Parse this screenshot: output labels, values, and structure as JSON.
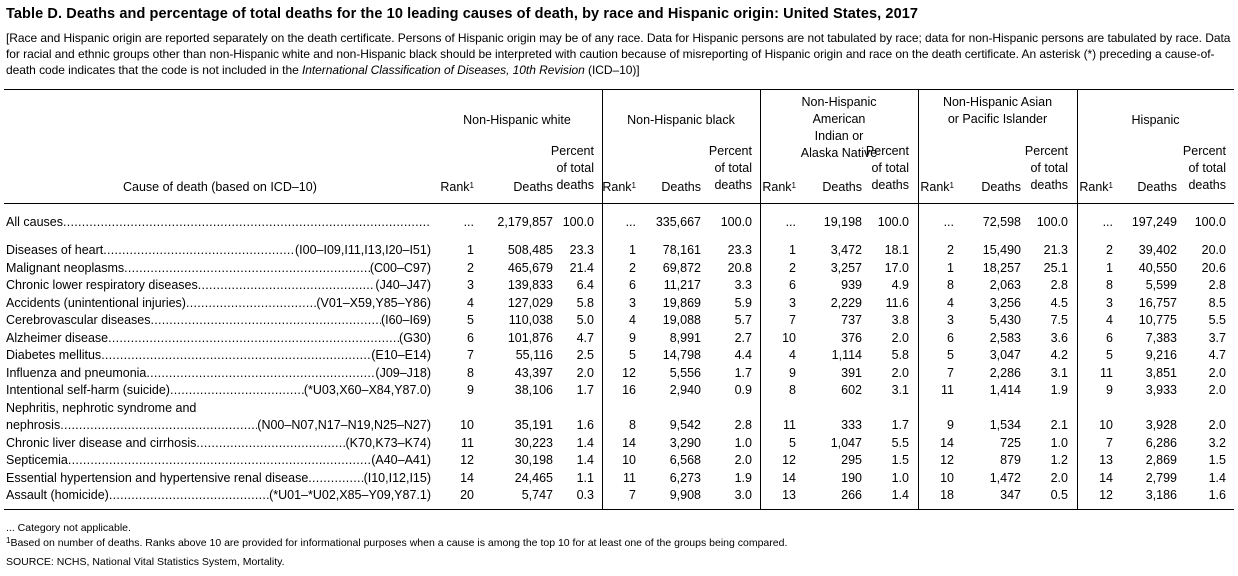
{
  "title": "Table D. Deaths and percentage of total deaths for the 10 leading causes of death, by race and Hispanic origin: United States, 2017",
  "note": {
    "text_a": "[Race and Hispanic origin are reported separately on the death certificate. Persons of Hispanic origin may be of any race. Data for Hispanic persons are not tabulated by race; data for non-Hispanic persons are tabulated by race. Data for racial and ethnic groups other than non-Hispanic white and non-Hispanic black should be interpreted with caution because of misreporting of Hispanic origin and race on the death certificate. An asterisk (*) preceding a cause-of-death code indicates that the code is not included in the ",
    "text_italic": "International Classification of Diseases, 10th Revision",
    "text_b": " (ICD–10)]"
  },
  "groups": [
    "Non-Hispanic white",
    "Non-Hispanic black",
    "Non-Hispanic American Indian or Alaska Native",
    "Non-Hispanic Asian or Pacific Islander",
    "Hispanic"
  ],
  "columns": {
    "cause": "Cause of death (based on ICD–10)",
    "rank": "Rank",
    "rank_sup": "1",
    "deaths": "Deaths",
    "percent_l1": "Percent",
    "percent_l2": "of total",
    "percent_l3": "deaths"
  },
  "all_causes": {
    "name": "All causes",
    "values": [
      [
        "...",
        "2,179,857",
        "100.0"
      ],
      [
        "...",
        "335,667",
        "100.0"
      ],
      [
        "...",
        "19,198",
        "100.0"
      ],
      [
        "...",
        "72,598",
        "100.0"
      ],
      [
        "...",
        "197,249",
        "100.0"
      ]
    ]
  },
  "rows": [
    {
      "name": "Diseases of heart",
      "code": "(I00–I09,I11,I13,I20–I51)",
      "values": [
        [
          "1",
          "508,485",
          "23.3"
        ],
        [
          "1",
          "78,161",
          "23.3"
        ],
        [
          "1",
          "3,472",
          "18.1"
        ],
        [
          "2",
          "15,490",
          "21.3"
        ],
        [
          "2",
          "39,402",
          "20.0"
        ]
      ]
    },
    {
      "name": "Malignant neoplasms",
      "code": "(C00–C97)",
      "values": [
        [
          "2",
          "465,679",
          "21.4"
        ],
        [
          "2",
          "69,872",
          "20.8"
        ],
        [
          "2",
          "3,257",
          "17.0"
        ],
        [
          "1",
          "18,257",
          "25.1"
        ],
        [
          "1",
          "40,550",
          "20.6"
        ]
      ]
    },
    {
      "name": "Chronic lower respiratory diseases",
      "code": "(J40–J47)",
      "values": [
        [
          "3",
          "139,833",
          "6.4"
        ],
        [
          "6",
          "11,217",
          "3.3"
        ],
        [
          "6",
          "939",
          "4.9"
        ],
        [
          "8",
          "2,063",
          "2.8"
        ],
        [
          "8",
          "5,599",
          "2.8"
        ]
      ]
    },
    {
      "name": "Accidents (unintentional injuries)",
      "code": "(V01–X59,Y85–Y86)",
      "values": [
        [
          "4",
          "127,029",
          "5.8"
        ],
        [
          "3",
          "19,869",
          "5.9"
        ],
        [
          "3",
          "2,229",
          "11.6"
        ],
        [
          "4",
          "3,256",
          "4.5"
        ],
        [
          "3",
          "16,757",
          "8.5"
        ]
      ]
    },
    {
      "name": "Cerebrovascular diseases",
      "code": "(I60–I69)",
      "values": [
        [
          "5",
          "110,038",
          "5.0"
        ],
        [
          "4",
          "19,088",
          "5.7"
        ],
        [
          "7",
          "737",
          "3.8"
        ],
        [
          "3",
          "5,430",
          "7.5"
        ],
        [
          "4",
          "10,775",
          "5.5"
        ]
      ]
    },
    {
      "name": "Alzheimer disease",
      "code": "(G30)",
      "values": [
        [
          "6",
          "101,876",
          "4.7"
        ],
        [
          "9",
          "8,991",
          "2.7"
        ],
        [
          "10",
          "376",
          "2.0"
        ],
        [
          "6",
          "2,583",
          "3.6"
        ],
        [
          "6",
          "7,383",
          "3.7"
        ]
      ]
    },
    {
      "name": "Diabetes mellitus",
      "code": "(E10–E14)",
      "values": [
        [
          "7",
          "55,116",
          "2.5"
        ],
        [
          "5",
          "14,798",
          "4.4"
        ],
        [
          "4",
          "1,114",
          "5.8"
        ],
        [
          "5",
          "3,047",
          "4.2"
        ],
        [
          "5",
          "9,216",
          "4.7"
        ]
      ]
    },
    {
      "name": "Influenza and pneumonia",
      "code": "(J09–J18)",
      "values": [
        [
          "8",
          "43,397",
          "2.0"
        ],
        [
          "12",
          "5,556",
          "1.7"
        ],
        [
          "9",
          "391",
          "2.0"
        ],
        [
          "7",
          "2,286",
          "3.1"
        ],
        [
          "11",
          "3,851",
          "2.0"
        ]
      ]
    },
    {
      "name": "Intentional self-harm (suicide)",
      "code": "(*U03,X60–X84,Y87.0)",
      "values": [
        [
          "9",
          "38,106",
          "1.7"
        ],
        [
          "16",
          "2,940",
          "0.9"
        ],
        [
          "8",
          "602",
          "3.1"
        ],
        [
          "11",
          "1,414",
          "1.9"
        ],
        [
          "9",
          "3,933",
          "2.0"
        ]
      ]
    },
    {
      "name": "nephrosis",
      "prefix": "Nephritis, nephrotic syndrome and",
      "code": "(N00–N07,N17–N19,N25–N27)",
      "values": [
        [
          "10",
          "35,191",
          "1.6"
        ],
        [
          "8",
          "9,542",
          "2.8"
        ],
        [
          "11",
          "333",
          "1.7"
        ],
        [
          "9",
          "1,534",
          "2.1"
        ],
        [
          "10",
          "3,928",
          "2.0"
        ]
      ]
    },
    {
      "name": "Chronic liver disease and cirrhosis",
      "code": "(K70,K73–K74)",
      "values": [
        [
          "11",
          "30,223",
          "1.4"
        ],
        [
          "14",
          "3,290",
          "1.0"
        ],
        [
          "5",
          "1,047",
          "5.5"
        ],
        [
          "14",
          "725",
          "1.0"
        ],
        [
          "7",
          "6,286",
          "3.2"
        ]
      ]
    },
    {
      "name": "Septicemia",
      "code": "(A40–A41)",
      "values": [
        [
          "12",
          "30,198",
          "1.4"
        ],
        [
          "10",
          "6,568",
          "2.0"
        ],
        [
          "12",
          "295",
          "1.5"
        ],
        [
          "12",
          "879",
          "1.2"
        ],
        [
          "13",
          "2,869",
          "1.5"
        ]
      ]
    },
    {
      "name": "Essential hypertension and hypertensive renal disease",
      "code": "(I10,I12,I15)",
      "values": [
        [
          "14",
          "24,465",
          "1.1"
        ],
        [
          "11",
          "6,273",
          "1.9"
        ],
        [
          "14",
          "190",
          "1.0"
        ],
        [
          "10",
          "1,472",
          "2.0"
        ],
        [
          "14",
          "2,799",
          "1.4"
        ]
      ]
    },
    {
      "name": "Assault (homicide)",
      "code": "(*U01–*U02,X85–Y09,Y87.1)",
      "values": [
        [
          "20",
          "5,747",
          "0.3"
        ],
        [
          "7",
          "9,908",
          "3.0"
        ],
        [
          "13",
          "266",
          "1.4"
        ],
        [
          "18",
          "347",
          "0.5"
        ],
        [
          "12",
          "3,186",
          "1.6"
        ]
      ]
    }
  ],
  "footnotes": {
    "na": "... Category not applicable.",
    "sup": "1",
    "rank_note": "Based on number of deaths. Ranks above 10 are provided for informational purposes when a cause is among the top 10 for at least one of the groups being compared.",
    "source": "SOURCE: NCHS, National Vital Statistics System, Mortality."
  }
}
